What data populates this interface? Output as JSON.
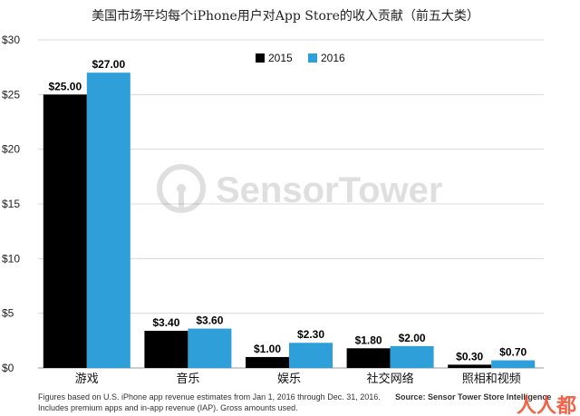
{
  "chart_data": {
    "type": "bar",
    "title": "美国市场平均每个iPhone用户对App Store的收入贡献（前五大类）",
    "xlabel": "",
    "ylabel": "",
    "ylim": [
      0,
      30
    ],
    "y_ticks": [
      "$0",
      "$5",
      "$10",
      "$15",
      "$20",
      "$25",
      "$30"
    ],
    "y_tick_values": [
      0,
      5,
      10,
      15,
      20,
      25,
      30
    ],
    "grid": true,
    "legend_position": "top-right",
    "categories": [
      "游戏",
      "音乐",
      "娱乐",
      "社交网络",
      "照相和视频"
    ],
    "series": [
      {
        "name": "2015",
        "color": "#000000",
        "values": [
          25.0,
          3.4,
          1.0,
          1.8,
          0.3
        ],
        "labels": [
          "$25.00",
          "$3.40",
          "$1.00",
          "$1.80",
          "$0.30"
        ]
      },
      {
        "name": "2016",
        "color": "#2e9fd8",
        "values": [
          27.0,
          3.6,
          2.3,
          2.0,
          0.7
        ],
        "labels": [
          "$27.00",
          "$3.60",
          "$2.30",
          "$2.00",
          "$0.70"
        ]
      }
    ]
  },
  "watermark": "SensorTower",
  "footnote_lines": [
    "Figures based on U.S. iPhone app revenue estimates from Jan 1, 2016 through Dec. 31, 2016.",
    "Includes premium apps and in-app revenue (IAP). Gross amounts used."
  ],
  "source": "Source: Sensor Tower Store Intelligence",
  "corner_logo": "人人都"
}
